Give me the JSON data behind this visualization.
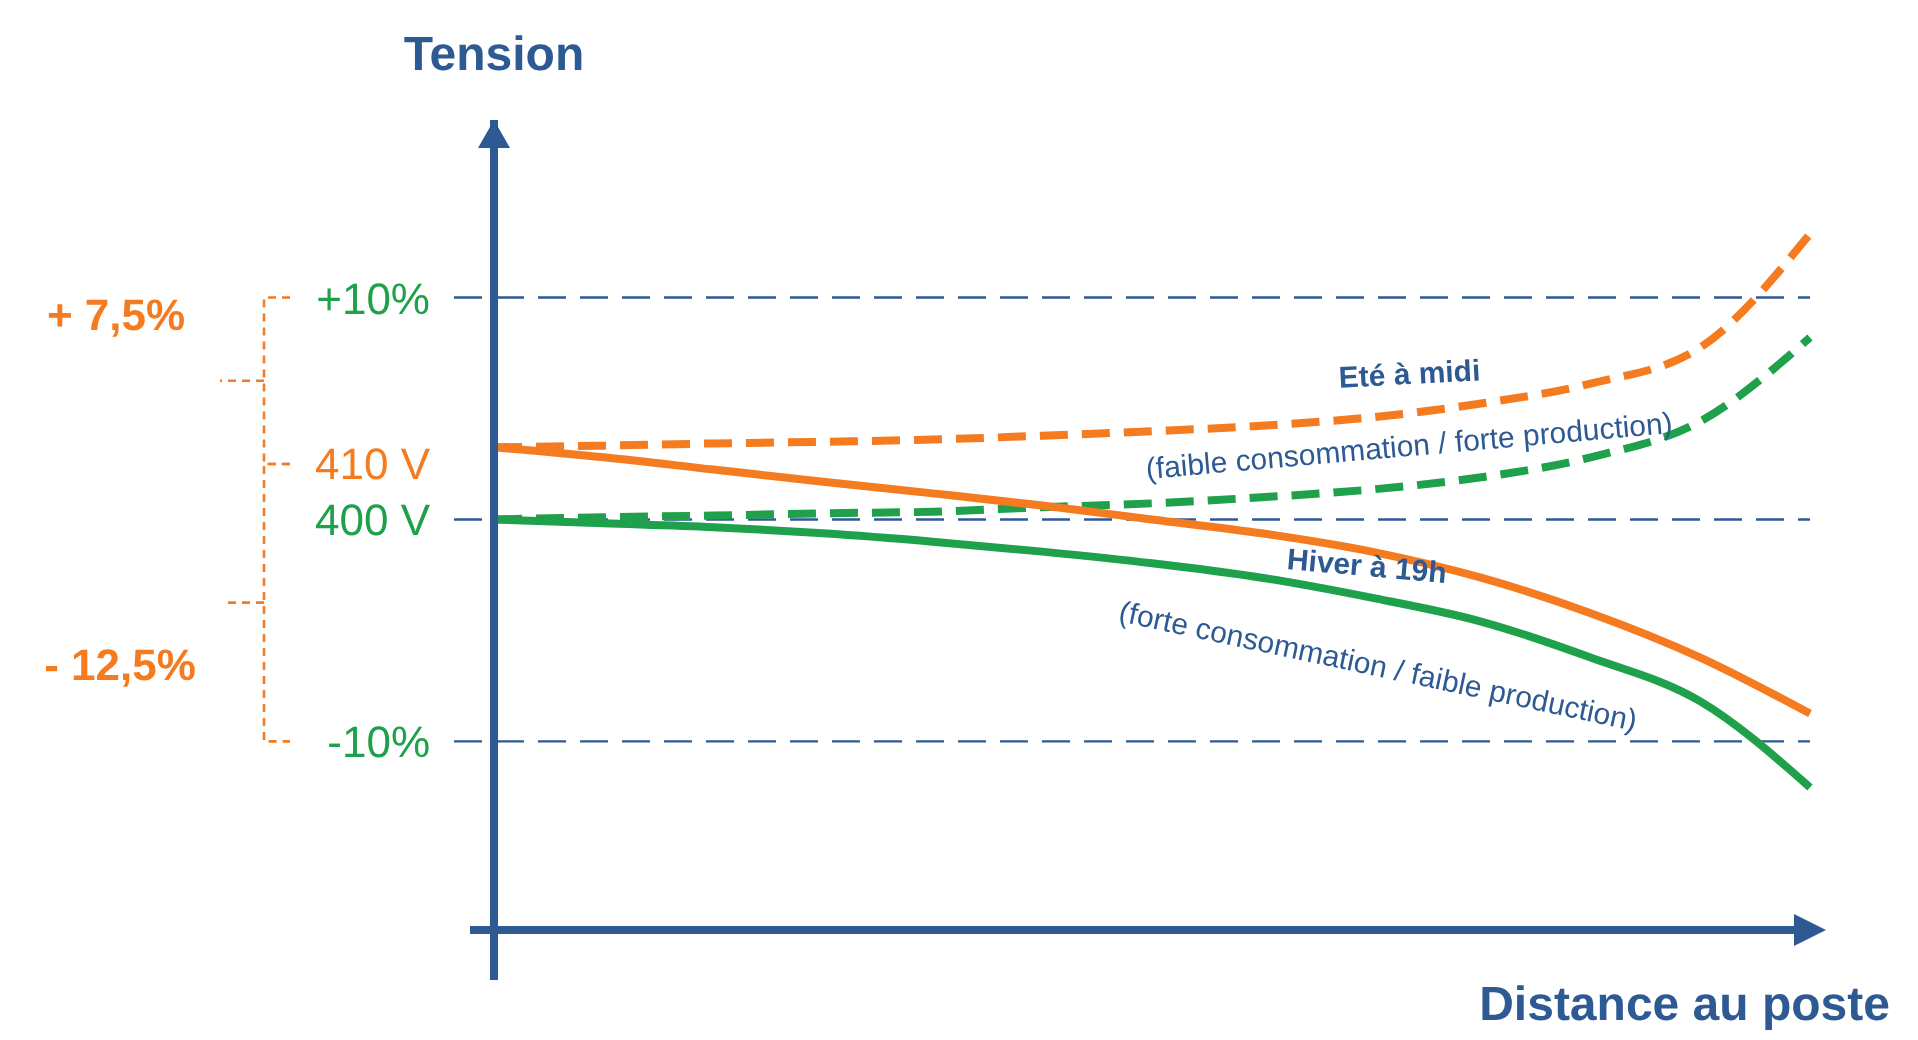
{
  "chart_data": {
    "type": "line",
    "ylabel": "Tension",
    "xlabel": "Distance au poste",
    "categories": [
      null,
      null,
      null,
      null,
      null,
      null,
      null,
      null,
      null,
      null,
      null,
      null,
      null
    ],
    "ylim": [
      326,
      472
    ],
    "yticks": [
      {
        "value": 410,
        "label": "410 V"
      },
      {
        "value": 400,
        "label": "400 V"
      }
    ],
    "series": [
      {
        "color": "#f47b20",
        "line_style": "dashed",
        "values": [
          413,
          413.3,
          413.7,
          414,
          414.4,
          415.1,
          415.9,
          416.9,
          418.4,
          420.9,
          424.5,
          431,
          451.5
        ]
      },
      {
        "color": "#1fa04a",
        "line_style": "dashed",
        "values": [
          400,
          400.4,
          400.7,
          401.1,
          401.4,
          402.2,
          402.9,
          404,
          405.4,
          407.6,
          411.2,
          417.7,
          432.8
        ]
      },
      {
        "color": "#f47b20",
        "line_style": "solid",
        "values": [
          413,
          411.2,
          409,
          406.8,
          404.7,
          402.5,
          400,
          397.5,
          394.2,
          389.5,
          383.1,
          375.1,
          365
        ]
      },
      {
        "color": "#1fa04a",
        "line_style": "solid",
        "values": [
          400,
          399.3,
          398.6,
          397.5,
          396,
          394.2,
          392.1,
          389.5,
          385.9,
          381.6,
          375.1,
          367.2,
          351.7
        ]
      }
    ],
    "ref_lines": [
      {
        "axis": "y",
        "value": 440,
        "color": "#2e5a94",
        "line_style": "dashed"
      },
      {
        "axis": "y",
        "value": 400,
        "color": "#2e5a94",
        "line_style": "dashed"
      },
      {
        "axis": "y",
        "value": 360,
        "color": "#2e5a94",
        "line_style": "dashed"
      }
    ],
    "annotations": [
      "+10%",
      "-10%",
      "+ 7,5%",
      "- 12,5%",
      "Eté à midi",
      "(faible consommation / forte production)",
      "Hiver à 19h",
      "(forte consommation / faible production)"
    ],
    "grid": false
  }
}
